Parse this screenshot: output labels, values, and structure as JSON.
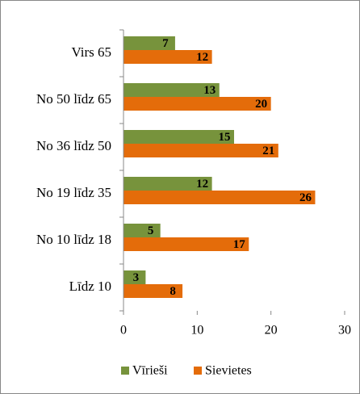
{
  "chart_data": {
    "type": "barh",
    "categories": [
      "Virs 65",
      "No 50 līdz 65",
      "No 36 līdz 50",
      "No 19 līdz 35",
      "No 10 līdz 18",
      "Līdz 10"
    ],
    "series": [
      {
        "name": "Vīrieši",
        "color": "#77933c",
        "values": [
          7,
          13,
          15,
          12,
          5,
          3
        ]
      },
      {
        "name": "Sievietes",
        "color": "#e46c0a",
        "values": [
          12,
          20,
          21,
          26,
          17,
          8
        ]
      }
    ],
    "xlim": [
      0,
      30
    ],
    "xticks": [
      0,
      10,
      20,
      30
    ],
    "legend": "bottom"
  }
}
